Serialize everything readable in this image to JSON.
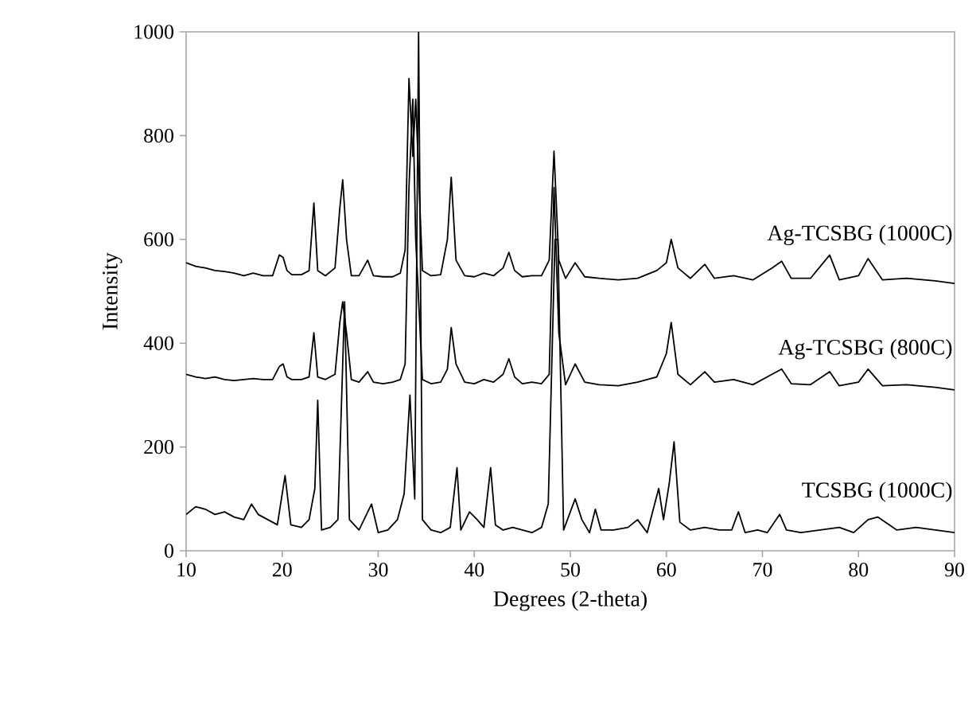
{
  "chart_data": {
    "type": "line",
    "xlabel": "Degrees (2-theta)",
    "ylabel": "Intensity",
    "xlim": [
      10,
      90
    ],
    "ylim": [
      0,
      1000
    ],
    "xticks": [
      10,
      20,
      30,
      40,
      50,
      60,
      70,
      80,
      90
    ],
    "yticks": [
      0,
      200,
      400,
      600,
      800,
      1000
    ],
    "grid": false,
    "series": [
      {
        "name": "Ag-TCSBG (1000C)",
        "color": "#000000",
        "x": [
          10,
          11,
          12,
          13,
          14,
          15,
          16,
          17,
          18,
          19,
          19.7,
          20.1,
          20.5,
          21,
          22,
          22.8,
          23.3,
          23.7,
          24.5,
          25.5,
          26.0,
          26.3,
          26.7,
          27.2,
          28,
          28.9,
          29.5,
          30.5,
          31.5,
          32.3,
          32.8,
          33.2,
          33.6,
          33.9,
          34.6,
          35.5,
          36.5,
          37.2,
          37.6,
          38.1,
          39,
          40,
          41,
          42,
          43,
          43.6,
          44.2,
          45,
          46,
          47,
          47.8,
          48.3,
          48.8,
          49.5,
          50.5,
          51.5,
          53,
          55,
          57,
          59,
          60,
          60.5,
          61.2,
          62.5,
          64,
          65,
          67,
          69,
          71,
          72,
          73,
          75,
          77,
          78,
          80,
          81,
          82.5,
          85,
          88,
          90
        ],
        "values": [
          555,
          548,
          545,
          540,
          538,
          535,
          530,
          535,
          530,
          530,
          570,
          565,
          540,
          532,
          532,
          540,
          670,
          540,
          530,
          545,
          660,
          715,
          600,
          530,
          530,
          560,
          530,
          528,
          528,
          535,
          580,
          910,
          760,
          870,
          540,
          530,
          532,
          600,
          720,
          560,
          530,
          528,
          535,
          530,
          545,
          575,
          540,
          528,
          530,
          530,
          560,
          770,
          560,
          525,
          555,
          528,
          525,
          522,
          525,
          540,
          555,
          600,
          545,
          525,
          552,
          525,
          530,
          522,
          545,
          558,
          525,
          525,
          570,
          522,
          530,
          563,
          522,
          525,
          520,
          515
        ]
      },
      {
        "name": "Ag-TCSBG (800C)",
        "color": "#000000",
        "x": [
          10,
          11,
          12,
          13,
          14,
          15,
          16,
          17,
          18,
          19,
          19.7,
          20.1,
          20.5,
          21,
          22,
          22.8,
          23.3,
          23.7,
          24.5,
          25.5,
          26.0,
          26.3,
          26.7,
          27.2,
          28,
          28.9,
          29.5,
          30.5,
          31.5,
          32.3,
          32.8,
          33.2,
          33.6,
          33.9,
          34.6,
          35.5,
          36.5,
          37.2,
          37.6,
          38.1,
          39,
          40,
          41,
          42,
          43,
          43.6,
          44.2,
          45,
          46,
          47,
          47.8,
          48.3,
          48.8,
          49.5,
          50.5,
          51.5,
          53,
          55,
          57,
          59,
          60,
          60.5,
          61.2,
          62.5,
          64,
          65,
          67,
          69,
          71,
          72,
          73,
          75,
          77,
          78,
          80,
          81,
          82.5,
          85,
          88,
          90
        ],
        "values": [
          340,
          335,
          332,
          335,
          330,
          328,
          330,
          332,
          330,
          330,
          355,
          360,
          335,
          330,
          330,
          335,
          420,
          335,
          330,
          340,
          440,
          480,
          420,
          330,
          325,
          345,
          325,
          322,
          325,
          330,
          360,
          700,
          870,
          600,
          330,
          322,
          325,
          350,
          430,
          360,
          325,
          322,
          330,
          325,
          340,
          370,
          335,
          322,
          325,
          322,
          340,
          700,
          420,
          320,
          360,
          325,
          320,
          318,
          325,
          335,
          380,
          440,
          340,
          320,
          345,
          325,
          330,
          320,
          340,
          350,
          322,
          320,
          345,
          318,
          325,
          350,
          318,
          320,
          315,
          310
        ]
      },
      {
        "name": "TCSBG (1000C)",
        "color": "#000000",
        "x": [
          10,
          11,
          12,
          13,
          14,
          15,
          16,
          16.8,
          17.5,
          18.5,
          19.5,
          20.3,
          20.9,
          22,
          22.8,
          23.4,
          23.7,
          24.1,
          25,
          25.8,
          26.5,
          27,
          28,
          29.3,
          30,
          31,
          32,
          32.7,
          33.3,
          33.8,
          34.2,
          34.6,
          35.5,
          36.5,
          37.5,
          38.2,
          38.6,
          39.5,
          40.3,
          41,
          41.7,
          42.2,
          43,
          44,
          45,
          46,
          47,
          47.7,
          48.4,
          48.7,
          49.3,
          50.5,
          51.2,
          52,
          52.6,
          53.2,
          54.5,
          56,
          57,
          58,
          59.2,
          59.7,
          60.3,
          60.8,
          61.4,
          62.5,
          64,
          65.5,
          66.8,
          67.5,
          68.2,
          69.5,
          70.5,
          71.8,
          72.5,
          74,
          76,
          78,
          79.5,
          81,
          82,
          84,
          86,
          88,
          90
        ],
        "values": [
          70,
          85,
          80,
          70,
          75,
          65,
          60,
          90,
          70,
          60,
          50,
          145,
          50,
          45,
          60,
          120,
          290,
          40,
          45,
          60,
          480,
          60,
          40,
          90,
          35,
          40,
          60,
          110,
          300,
          100,
          1000,
          60,
          40,
          35,
          45,
          160,
          40,
          75,
          60,
          45,
          160,
          50,
          40,
          45,
          40,
          35,
          45,
          90,
          600,
          600,
          40,
          100,
          60,
          35,
          80,
          40,
          40,
          45,
          60,
          35,
          120,
          60,
          130,
          210,
          55,
          40,
          45,
          40,
          40,
          75,
          35,
          40,
          35,
          70,
          40,
          35,
          40,
          45,
          35,
          60,
          65,
          40,
          45,
          40,
          35
        ]
      }
    ]
  }
}
